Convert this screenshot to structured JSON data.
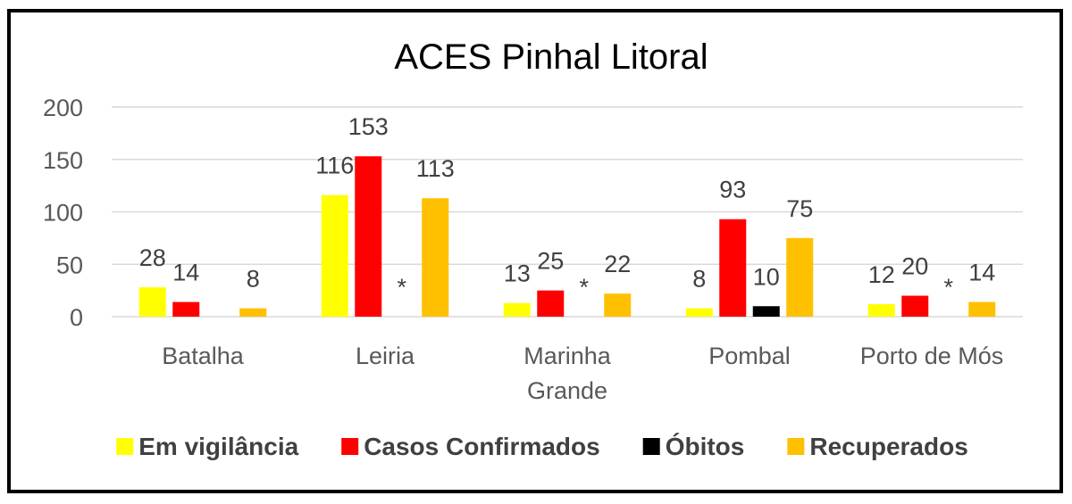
{
  "chart_data": {
    "type": "bar",
    "title": "ACES Pinhal Litoral",
    "categories": [
      "Batalha",
      "Leiria",
      "Marinha Grande",
      "Pombal",
      "Porto de Mós"
    ],
    "series": [
      {
        "name": "Em vigilância",
        "color": "#FFFF00",
        "values": [
          28,
          116,
          13,
          8,
          12
        ]
      },
      {
        "name": "Casos Confirmados",
        "color": "#FF0000",
        "values": [
          14,
          153,
          25,
          93,
          20
        ]
      },
      {
        "name": "Óbitos",
        "color": "#000000",
        "values": [
          null,
          null,
          null,
          10,
          null
        ],
        "labels": [
          "",
          "*",
          "*",
          "10",
          "*"
        ]
      },
      {
        "name": "Recuperados",
        "color": "#FFC000",
        "values": [
          8,
          113,
          22,
          75,
          14
        ]
      }
    ],
    "ylim": [
      0,
      200
    ],
    "yticks": [
      0,
      50,
      100,
      150,
      200
    ],
    "grid": true,
    "legend_position": "bottom"
  }
}
